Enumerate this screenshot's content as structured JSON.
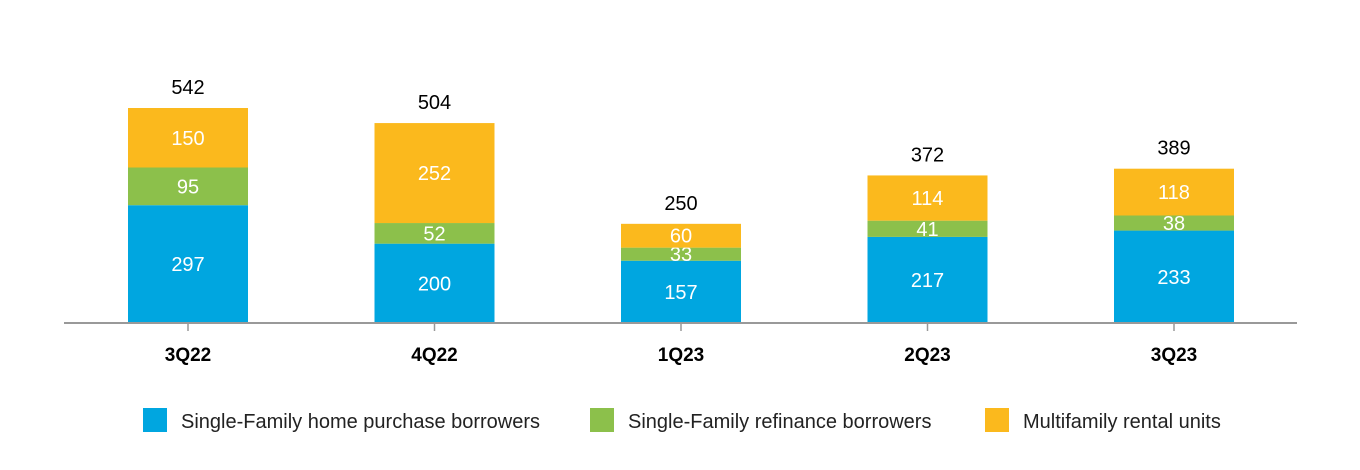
{
  "colors": {
    "single_family_purchase": "#00a6e0",
    "single_family_refinance": "#8cc04b",
    "multifamily": "#fbb91d",
    "axis": "#999999"
  },
  "chart_data": {
    "type": "bar",
    "stacked": true,
    "title": "",
    "xlabel": "",
    "ylabel": "",
    "categories": [
      "3Q22",
      "4Q22",
      "1Q23",
      "2Q23",
      "3Q23"
    ],
    "series": [
      {
        "name": "Single-Family home purchase borrowers",
        "color": "#00a6e0",
        "values": [
          297,
          200,
          157,
          217,
          233
        ]
      },
      {
        "name": "Single-Family refinance borrowers",
        "color": "#8cc04b",
        "values": [
          95,
          52,
          33,
          41,
          38
        ]
      },
      {
        "name": "Multifamily rental units",
        "color": "#fbb91d",
        "values": [
          150,
          252,
          60,
          114,
          118
        ]
      }
    ],
    "totals": [
      542,
      504,
      250,
      372,
      389
    ],
    "ylim": [
      0,
      542
    ],
    "grid": false,
    "legend_position": "bottom"
  }
}
